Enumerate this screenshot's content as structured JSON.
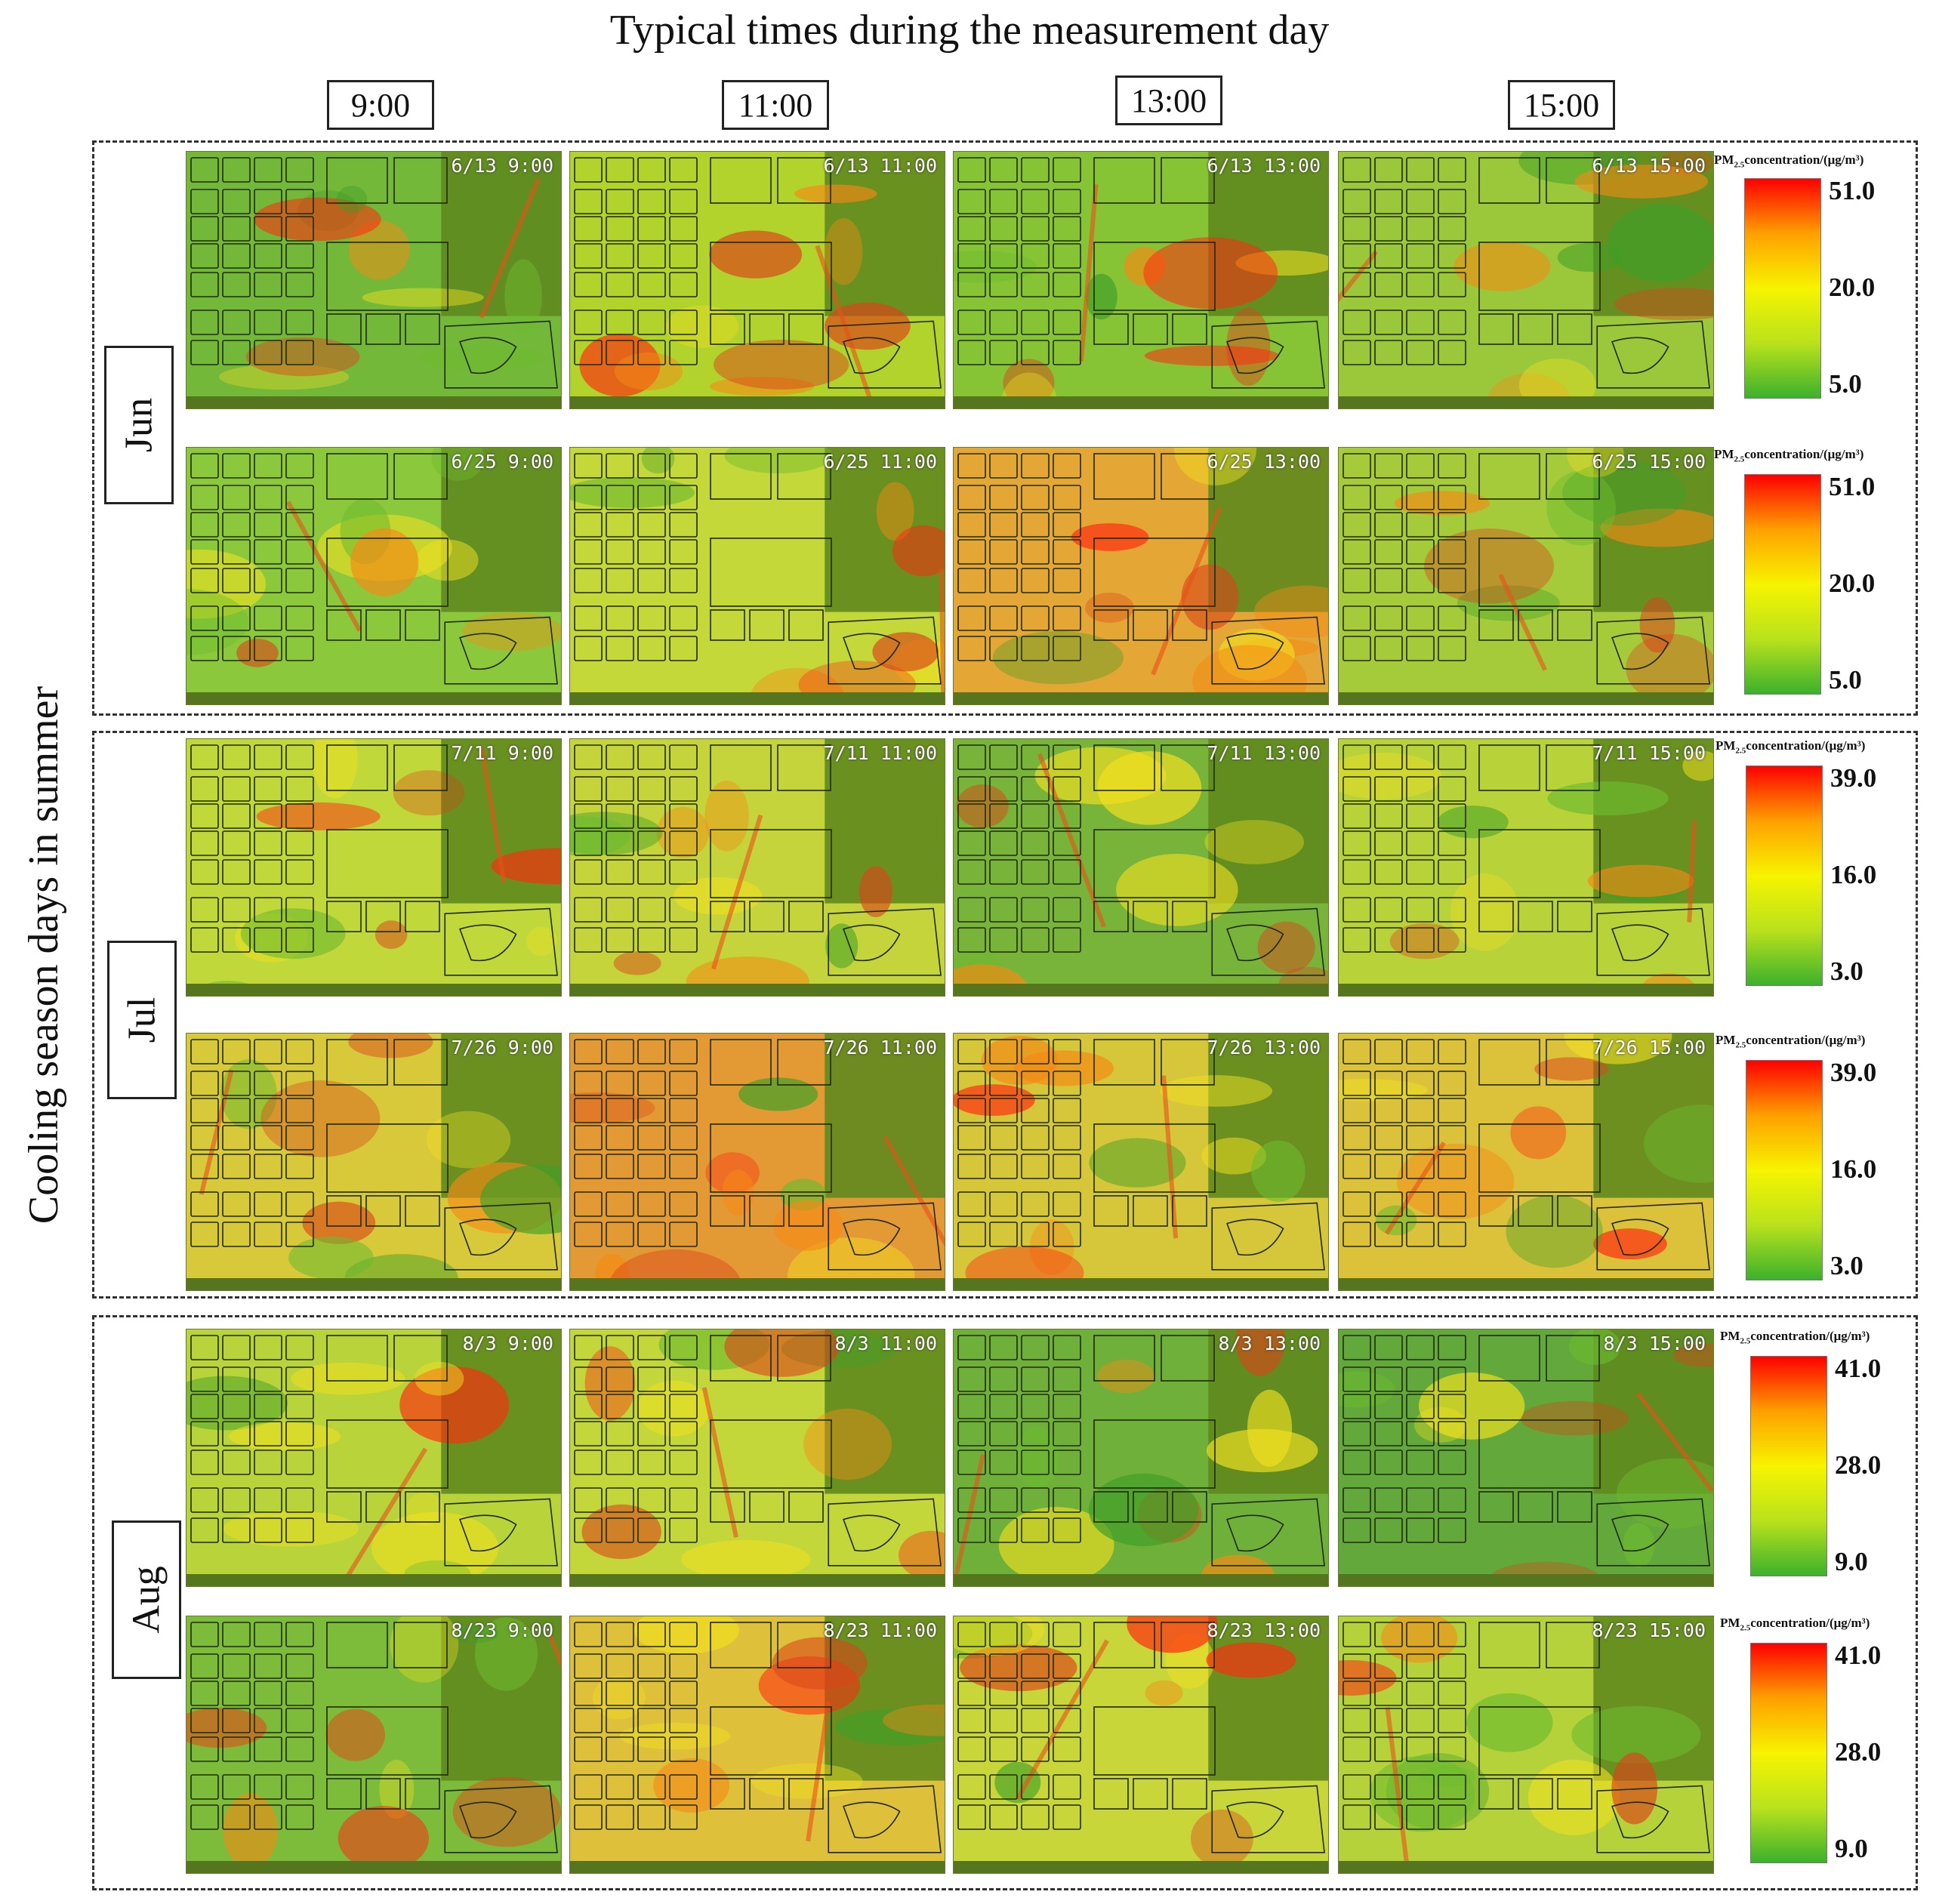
{
  "title": "Typical times during the measurement day",
  "y_axis_label": "Cooling season days in summer",
  "time_labels": [
    "9:00",
    "11:00",
    "13:00",
    "15:00"
  ],
  "legend": {
    "title_pre": "PM",
    "title_sub": "2.5",
    "title_post": "concentration/(μg/m³)",
    "colors": [
      "#ff0000",
      "#ffa000",
      "#f6f400",
      "#b9e21c",
      "#3cb12c"
    ]
  },
  "months": [
    {
      "label": "Jun",
      "scale": [
        "51.0",
        "20.0",
        "5.0"
      ],
      "scale_range": [
        5.0,
        51.0
      ],
      "rows": [
        {
          "date": "6/13",
          "timestamps": [
            "6/13 9:00",
            "6/13 11:00",
            "6/13 13:00",
            "6/13 15:00"
          ]
        },
        {
          "date": "6/25",
          "timestamps": [
            "6/25 9:00",
            "6/25 11:00",
            "6/25 13:00",
            "6/25 15:00"
          ]
        }
      ]
    },
    {
      "label": "Jul",
      "scale": [
        "39.0",
        "16.0",
        "3.0"
      ],
      "scale_range": [
        3.0,
        39.0
      ],
      "rows": [
        {
          "date": "7/11",
          "timestamps": [
            "7/11 9:00",
            "7/11 11:00",
            "7/11 13:00",
            "7/11 15:00"
          ]
        },
        {
          "date": "7/26",
          "timestamps": [
            "7/26 9:00",
            "7/26 11:00",
            "7/26 13:00",
            "7/26 15:00"
          ]
        }
      ]
    },
    {
      "label": "Aug",
      "scale": [
        "41.0",
        "28.0",
        "9.0"
      ],
      "scale_range": [
        9.0,
        41.0
      ],
      "rows": [
        {
          "date": "8/3",
          "timestamps": [
            "8/3 9:00",
            "8/3 11:00",
            "8/3 13:00",
            "8/3 15:00"
          ]
        },
        {
          "date": "8/23",
          "timestamps": [
            "8/23 9:00",
            "8/23 11:00",
            "8/23 13:00",
            "8/23 15:00"
          ]
        }
      ]
    }
  ],
  "map_tones": [
    [
      "#74b83a",
      "#b2d22c",
      "#86c435",
      "#9ac83a"
    ],
    [
      "#8cc83c",
      "#c5d83a",
      "#e4a634",
      "#a6cb3a"
    ],
    [
      "#c0d83a",
      "#c5d43a",
      "#78b43a",
      "#b8d23a"
    ],
    [
      "#d8c93a",
      "#e49a34",
      "#d6c63a",
      "#dcc23a"
    ],
    [
      "#b8d43a",
      "#c3d63a",
      "#6eb03a",
      "#62a83a"
    ],
    [
      "#7cbc3a",
      "#dec03a",
      "#c8d63a",
      "#b6d23a"
    ]
  ]
}
